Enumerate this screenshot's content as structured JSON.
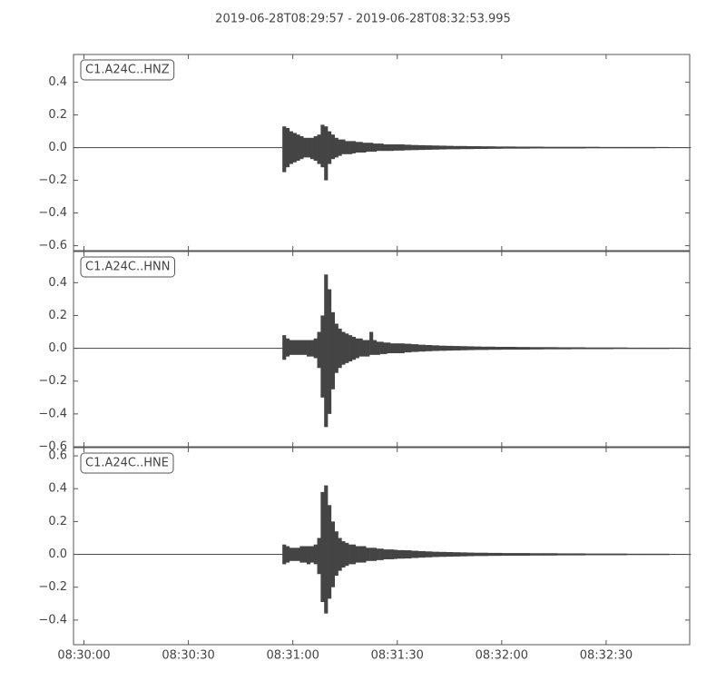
{
  "chart_data": {
    "type": "waveform",
    "title": "2019-06-28T08:29:57  -  2019-06-28T08:32:53.995",
    "xlim": [
      "08:29:57",
      "08:32:54"
    ],
    "xticks": [
      "08:30:00",
      "08:30:30",
      "08:31:00",
      "08:31:30",
      "08:32:00",
      "08:32:30"
    ],
    "x": [
      "08:29:57",
      "08:30:56",
      "08:30:57",
      "08:30:58",
      "08:30:59",
      "08:31:00",
      "08:31:01",
      "08:31:02",
      "08:31:03",
      "08:31:04",
      "08:31:05",
      "08:31:06",
      "08:31:07",
      "08:31:08",
      "08:31:09",
      "08:31:10",
      "08:31:11",
      "08:31:12",
      "08:31:13",
      "08:31:14",
      "08:31:15",
      "08:31:16",
      "08:31:17",
      "08:31:18",
      "08:31:19",
      "08:31:20",
      "08:31:21",
      "08:31:22",
      "08:31:23",
      "08:31:24",
      "08:31:25",
      "08:31:26",
      "08:31:27",
      "08:31:28",
      "08:31:29",
      "08:31:30",
      "08:31:32",
      "08:31:34",
      "08:31:36",
      "08:31:38",
      "08:31:40",
      "08:31:42",
      "08:31:44",
      "08:31:46",
      "08:31:48",
      "08:31:50",
      "08:31:52",
      "08:31:54",
      "08:31:56",
      "08:31:58",
      "08:32:00",
      "08:32:04",
      "08:32:08",
      "08:32:12",
      "08:32:16",
      "08:32:20",
      "08:32:24",
      "08:32:28",
      "08:32:32",
      "08:32:36",
      "08:32:40",
      "08:32:44",
      "08:32:48",
      "08:32:52",
      "08:32:54"
    ],
    "color": "#444444",
    "panels": [
      {
        "label": "C1.A24C..HNZ",
        "ylim": [
          -0.63,
          0.57
        ],
        "yticks": [
          {
            "value": -0.6,
            "label": "−0.6"
          },
          {
            "value": -0.4,
            "label": "−0.4"
          },
          {
            "value": -0.2,
            "label": "−0.2"
          },
          {
            "value": 0,
            "label": "0.0"
          },
          0.2,
          0.4
        ],
        "upper": [
          0,
          0,
          0.13,
          0.12,
          0.1,
          0.09,
          0.08,
          0.07,
          0.06,
          0.06,
          0.06,
          0.07,
          0.08,
          0.14,
          0.13,
          0.1,
          0.08,
          0.06,
          0.05,
          0.05,
          0.04,
          0.04,
          0.04,
          0.035,
          0.035,
          0.03,
          0.03,
          0.03,
          0.025,
          0.025,
          0.025,
          0.02,
          0.02,
          0.02,
          0.02,
          0.02,
          0.018,
          0.016,
          0.015,
          0.014,
          0.013,
          0.012,
          0.011,
          0.01,
          0.01,
          0.009,
          0.009,
          0.008,
          0.008,
          0.007,
          0.007,
          0.006,
          0.006,
          0.005,
          0.005,
          0.005,
          0.005,
          0.004,
          0.004,
          0.004,
          0.004,
          0.004,
          0.003,
          0.003,
          0.003
        ],
        "lower": [
          0,
          0,
          -0.15,
          -0.12,
          -0.1,
          -0.09,
          -0.08,
          -0.07,
          -0.06,
          -0.06,
          -0.07,
          -0.08,
          -0.1,
          -0.12,
          -0.2,
          -0.1,
          -0.07,
          -0.06,
          -0.05,
          -0.04,
          -0.04,
          -0.04,
          -0.035,
          -0.03,
          -0.03,
          -0.03,
          -0.025,
          -0.025,
          -0.025,
          -0.02,
          -0.02,
          -0.02,
          -0.02,
          -0.02,
          -0.018,
          -0.018,
          -0.016,
          -0.015,
          -0.014,
          -0.013,
          -0.012,
          -0.011,
          -0.01,
          -0.01,
          -0.009,
          -0.009,
          -0.008,
          -0.008,
          -0.007,
          -0.007,
          -0.006,
          -0.006,
          -0.005,
          -0.005,
          -0.005,
          -0.005,
          -0.004,
          -0.004,
          -0.004,
          -0.004,
          -0.004,
          -0.003,
          -0.003,
          -0.003,
          -0.003
        ]
      },
      {
        "label": "C1.A24C..HNN",
        "ylim": [
          -0.6,
          0.59
        ],
        "yticks": [
          {
            "value": -0.6,
            "label": "−0.6"
          },
          {
            "value": -0.4,
            "label": "−0.4"
          },
          {
            "value": -0.2,
            "label": "−0.2"
          },
          {
            "value": 0,
            "label": "0.0"
          },
          0.2,
          0.4
        ],
        "upper": [
          0,
          0,
          0.08,
          0.06,
          0.05,
          0.05,
          0.05,
          0.05,
          0.05,
          0.05,
          0.05,
          0.06,
          0.1,
          0.2,
          0.45,
          0.36,
          0.22,
          0.15,
          0.12,
          0.1,
          0.09,
          0.08,
          0.07,
          0.06,
          0.06,
          0.05,
          0.05,
          0.1,
          0.05,
          0.04,
          0.04,
          0.035,
          0.035,
          0.03,
          0.03,
          0.03,
          0.028,
          0.025,
          0.022,
          0.02,
          0.018,
          0.016,
          0.015,
          0.014,
          0.013,
          0.012,
          0.011,
          0.01,
          0.01,
          0.009,
          0.009,
          0.008,
          0.007,
          0.007,
          0.006,
          0.006,
          0.005,
          0.005,
          0.005,
          0.004,
          0.004,
          0.004,
          0.004,
          0.003,
          0.003
        ],
        "lower": [
          0,
          0,
          -0.07,
          -0.05,
          -0.04,
          -0.04,
          -0.04,
          -0.04,
          -0.04,
          -0.05,
          -0.05,
          -0.06,
          -0.12,
          -0.3,
          -0.48,
          -0.4,
          -0.25,
          -0.15,
          -0.12,
          -0.1,
          -0.09,
          -0.08,
          -0.07,
          -0.06,
          -0.05,
          -0.05,
          -0.05,
          -0.04,
          -0.04,
          -0.04,
          -0.035,
          -0.035,
          -0.03,
          -0.03,
          -0.03,
          -0.03,
          -0.025,
          -0.022,
          -0.02,
          -0.018,
          -0.016,
          -0.015,
          -0.014,
          -0.013,
          -0.012,
          -0.011,
          -0.01,
          -0.01,
          -0.009,
          -0.009,
          -0.008,
          -0.008,
          -0.007,
          -0.006,
          -0.006,
          -0.005,
          -0.005,
          -0.005,
          -0.004,
          -0.004,
          -0.004,
          -0.004,
          -0.003,
          -0.003,
          -0.003
        ]
      },
      {
        "label": "C1.A24C..HNE",
        "ylim": [
          -0.55,
          0.65
        ],
        "yticks": [
          {
            "value": -0.4,
            "label": "−0.4"
          },
          {
            "value": -0.2,
            "label": "−0.2"
          },
          {
            "value": 0,
            "label": "0.0"
          },
          0.2,
          0.4,
          0.6
        ],
        "upper": [
          0,
          0,
          0.06,
          0.05,
          0.04,
          0.04,
          0.04,
          0.05,
          0.05,
          0.05,
          0.05,
          0.06,
          0.1,
          0.38,
          0.42,
          0.3,
          0.2,
          0.14,
          0.1,
          0.08,
          0.07,
          0.06,
          0.06,
          0.05,
          0.05,
          0.05,
          0.04,
          0.04,
          0.04,
          0.035,
          0.035,
          0.03,
          0.03,
          0.03,
          0.028,
          0.026,
          0.025,
          0.022,
          0.02,
          0.018,
          0.016,
          0.015,
          0.014,
          0.013,
          0.012,
          0.011,
          0.01,
          0.01,
          0.009,
          0.009,
          0.008,
          0.008,
          0.007,
          0.007,
          0.006,
          0.006,
          0.005,
          0.005,
          0.005,
          0.004,
          0.004,
          0.004,
          0.003,
          0.003,
          0.003
        ],
        "lower": [
          0,
          0,
          -0.06,
          -0.05,
          -0.04,
          -0.04,
          -0.04,
          -0.05,
          -0.05,
          -0.06,
          -0.05,
          -0.06,
          -0.12,
          -0.29,
          -0.36,
          -0.27,
          -0.2,
          -0.13,
          -0.1,
          -0.08,
          -0.07,
          -0.06,
          -0.06,
          -0.05,
          -0.05,
          -0.05,
          -0.04,
          -0.04,
          -0.04,
          -0.035,
          -0.035,
          -0.03,
          -0.03,
          -0.03,
          -0.028,
          -0.026,
          -0.025,
          -0.022,
          -0.02,
          -0.018,
          -0.016,
          -0.015,
          -0.014,
          -0.013,
          -0.012,
          -0.011,
          -0.01,
          -0.01,
          -0.009,
          -0.009,
          -0.008,
          -0.008,
          -0.007,
          -0.007,
          -0.006,
          -0.006,
          -0.005,
          -0.005,
          -0.005,
          -0.004,
          -0.004,
          -0.004,
          -0.003,
          -0.003,
          -0.003
        ]
      }
    ]
  }
}
